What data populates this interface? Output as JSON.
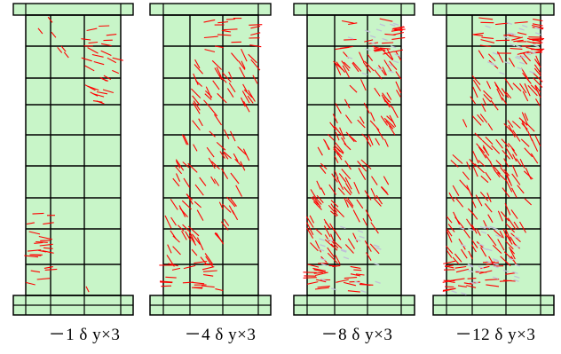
{
  "specimens": [
    {
      "id": "s1",
      "caption": "－1 δ y×3",
      "crack_level": 1
    },
    {
      "id": "s2",
      "caption": "－4 δ y×3",
      "crack_level": 2
    },
    {
      "id": "s3",
      "caption": "－8 δ y×3",
      "crack_level": 3
    },
    {
      "id": "s4",
      "caption": "－12 δ y×3",
      "crack_level": 4
    }
  ],
  "colors": {
    "concrete_fill": "#c8f5c8",
    "grid_line": "#000000",
    "crack": "#ff0000",
    "crushing": "#c0c0d8"
  }
}
